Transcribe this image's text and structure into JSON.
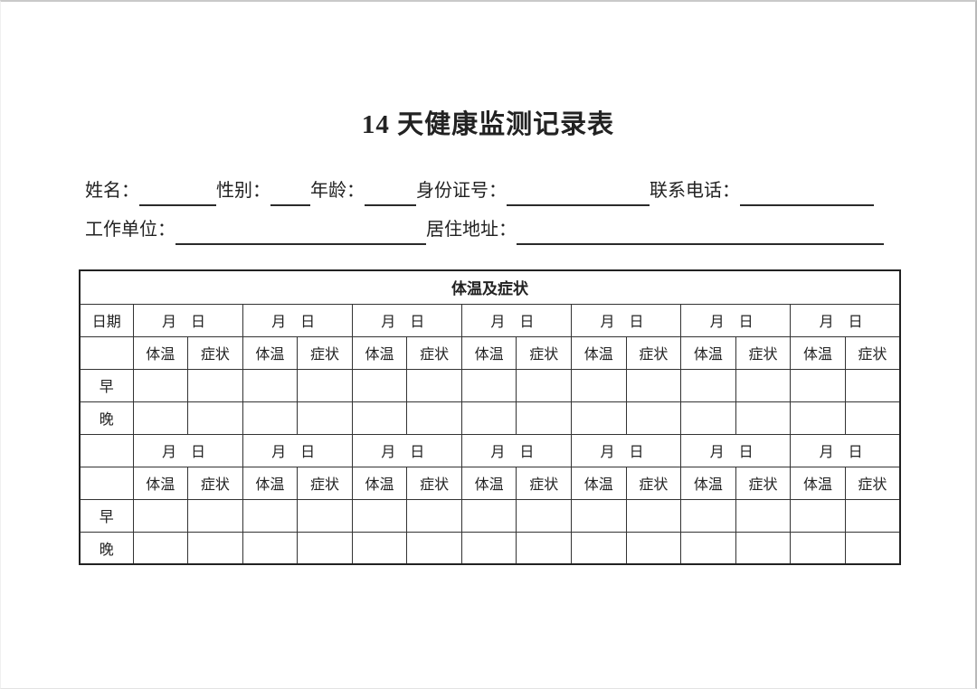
{
  "document": {
    "title": "14 天健康监测记录表"
  },
  "info_fields": {
    "name_label": "姓名：",
    "name_value": "",
    "gender_label": "性别：",
    "gender_value": "",
    "age_label": "年龄：",
    "age_value": "",
    "id_number_label": "身份证号：",
    "id_number_value": "",
    "phone_label": "联系电话：",
    "phone_value": "",
    "work_unit_label": "工作单位：",
    "work_unit_value": "",
    "address_label": "居住地址：",
    "address_value": ""
  },
  "table": {
    "section_header": "体温及症状",
    "date_label": "日期",
    "month_day_label": "月　日",
    "temp_label": "体温",
    "symptom_label": "症状",
    "morning_label": "早",
    "evening_label": "晚",
    "day_groups_per_section": 7,
    "sections": 2,
    "all_entry_cells_empty": true
  },
  "colors": {
    "text": "#222222",
    "table_border": "#333333",
    "page_edge": "#c9c9c9"
  }
}
